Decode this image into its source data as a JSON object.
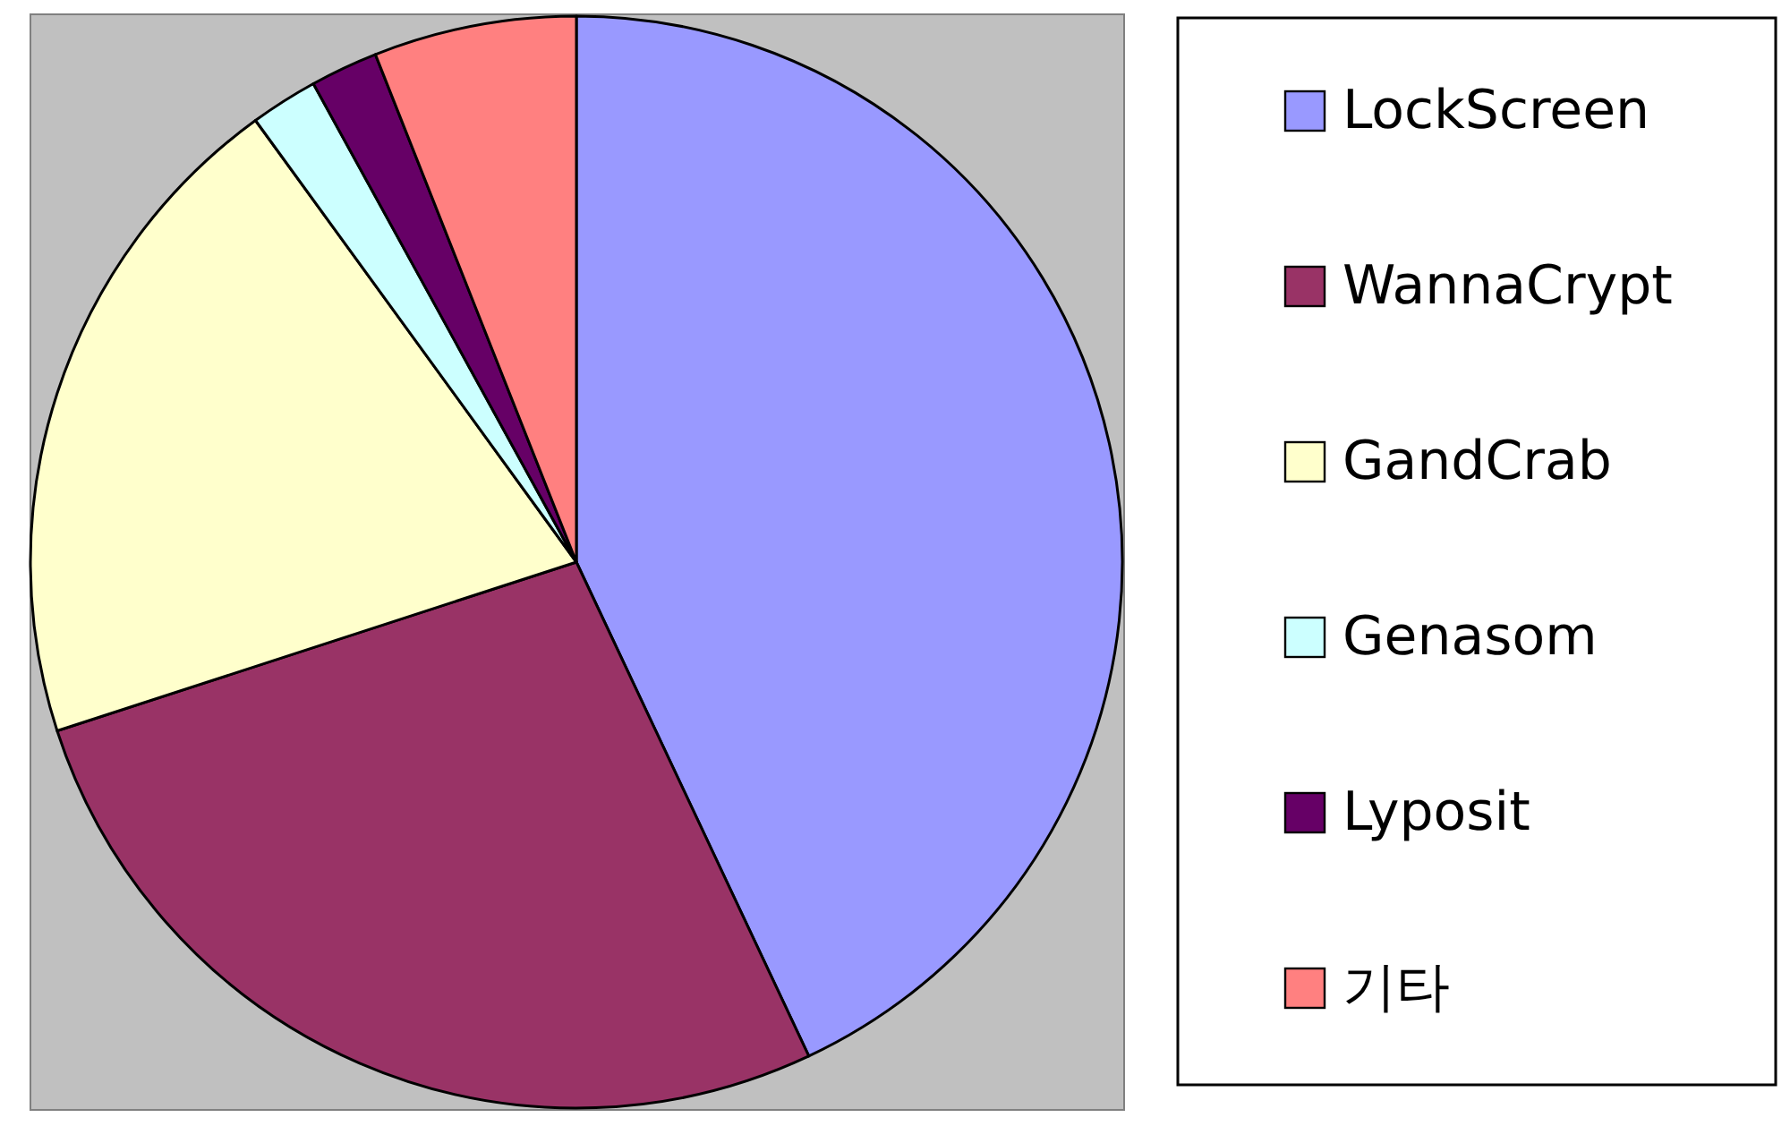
{
  "chart_data": {
    "type": "pie",
    "categories": [
      "LockScreen",
      "WannaCrypt",
      "GandCrab",
      "Genasom",
      "Lyposit",
      "기타"
    ],
    "values": [
      43,
      27,
      20,
      2,
      2,
      6
    ],
    "colors": [
      "#9999ff",
      "#993366",
      "#ffffcc",
      "#ccffff",
      "#660066",
      "#ff8080"
    ],
    "legend": "right"
  }
}
